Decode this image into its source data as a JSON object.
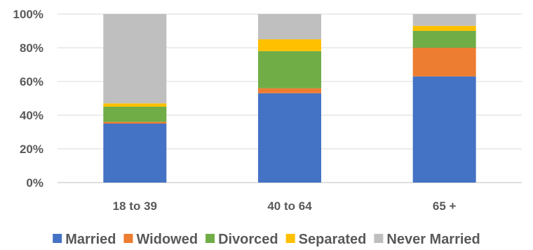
{
  "chart_data": {
    "type": "bar",
    "stacked": true,
    "percent": true,
    "categories": [
      "18 to 39",
      "40 to 64",
      "65 +"
    ],
    "series": [
      {
        "name": "Married",
        "color": "#4472C4",
        "values": [
          35,
          53,
          63
        ]
      },
      {
        "name": "Widowed",
        "color": "#ED7D31",
        "values": [
          1,
          3,
          17
        ]
      },
      {
        "name": "Divorced",
        "color": "#70AD47",
        "values": [
          9,
          22,
          10
        ]
      },
      {
        "name": "Separated",
        "color": "#FFC000",
        "values": [
          2,
          7,
          3
        ]
      },
      {
        "name": "Never Married",
        "color": "#BFBFBF",
        "values": [
          53,
          15,
          7
        ]
      }
    ],
    "yticks": [
      "0%",
      "20%",
      "40%",
      "60%",
      "80%",
      "100%"
    ],
    "ylim": [
      0,
      100
    ],
    "grid": true,
    "legend_position": "bottom",
    "title": "",
    "xlabel": "",
    "ylabel": ""
  }
}
